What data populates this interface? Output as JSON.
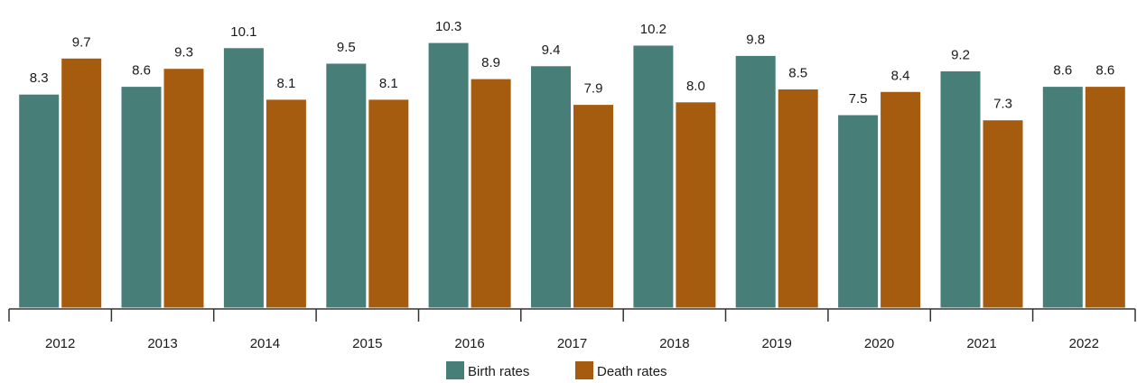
{
  "chart_data": {
    "type": "bar",
    "categories": [
      "2012",
      "2013",
      "2014",
      "2015",
      "2016",
      "2017",
      "2018",
      "2019",
      "2020",
      "2021",
      "2022"
    ],
    "series": [
      {
        "name": "Birth rates",
        "color": "#477e78",
        "values": [
          8.3,
          8.6,
          10.1,
          9.5,
          10.3,
          9.4,
          10.2,
          9.8,
          7.5,
          9.2,
          8.6
        ]
      },
      {
        "name": "Death rates",
        "color": "#a55c0e",
        "values": [
          9.7,
          9.3,
          8.1,
          8.1,
          8.9,
          7.9,
          8.0,
          8.5,
          8.4,
          7.3,
          8.6
        ]
      }
    ],
    "ylim": [
      0,
      10.5
    ],
    "grid": false,
    "legend": "bottom-center",
    "data_labels": true
  }
}
